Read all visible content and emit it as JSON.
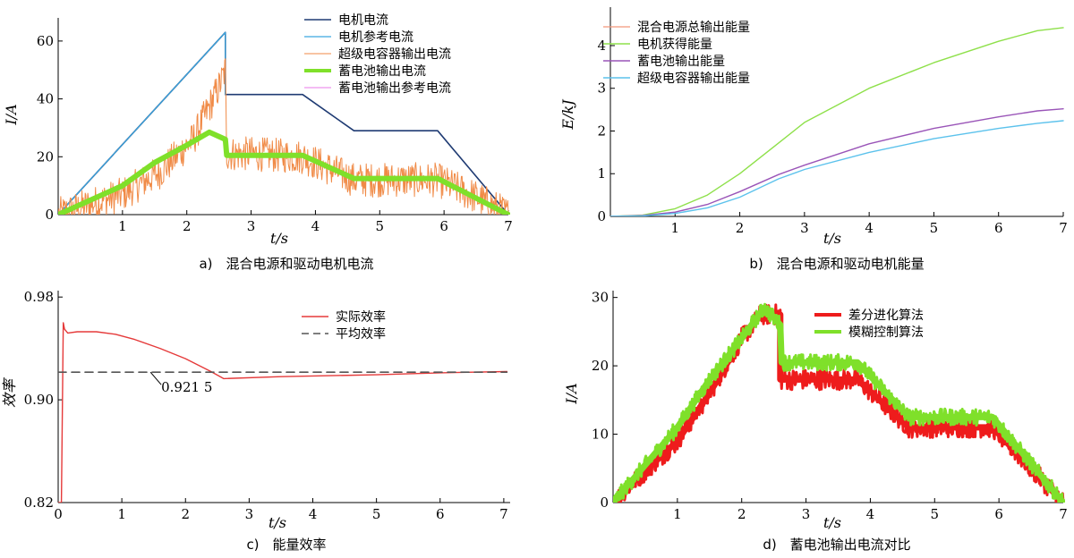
{
  "chart_data": [
    {
      "id": "a",
      "type": "line",
      "caption": "a)　混合电源和驱动电机电流",
      "xlabel": "t/s",
      "ylabel": "I/A",
      "xlim": [
        0,
        7
      ],
      "ylim": [
        0,
        68
      ],
      "xticks": [
        1,
        2,
        3,
        4,
        5,
        6,
        7
      ],
      "yticks": [
        0,
        20,
        40,
        60
      ],
      "legend_position": "top-right",
      "series": [
        {
          "name": "电机电流",
          "color": "#1f3b73",
          "width": 1.6,
          "x": [
            0,
            2.6,
            2.6,
            3.8,
            4.6,
            5.9,
            7
          ],
          "y": [
            0,
            63,
            41.5,
            41.5,
            29,
            29,
            0
          ]
        },
        {
          "name": "电机参考电流",
          "color": "#3aa7e0",
          "width": 1.2,
          "x": [
            0,
            2.6,
            2.6
          ],
          "y": [
            0,
            63,
            41.5
          ]
        },
        {
          "name": "超级电容器输出电流",
          "color": "#f08a46",
          "width": 1,
          "noisy": true,
          "noise_amp": 6,
          "x": [
            0,
            1,
            1.6,
            2.1,
            2.5,
            2.6,
            2.62,
            3,
            3.8,
            4.6,
            5.9,
            6.5,
            7
          ],
          "y": [
            0,
            7,
            15,
            26,
            44,
            50,
            21,
            21,
            20,
            12,
            12,
            6,
            0
          ]
        },
        {
          "name": "蓄电池输出电流",
          "color": "#7fe02a",
          "width": 6,
          "x": [
            0,
            1,
            1.5,
            2.0,
            2.35,
            2.5,
            2.6,
            2.62,
            3.8,
            4.6,
            5.9,
            7
          ],
          "y": [
            0,
            10,
            18,
            24,
            28.5,
            27,
            26,
            20.5,
            20.5,
            12.5,
            12.5,
            0
          ]
        },
        {
          "name": "蓄电池输出参考电流",
          "color": "#e879e8",
          "width": 1,
          "legend_only": true,
          "x": [],
          "y": []
        }
      ]
    },
    {
      "id": "b",
      "type": "line",
      "caption": "b)　混合电源和驱动电机能量",
      "xlabel": "t/s",
      "ylabel": "E/kJ",
      "xlim": [
        0,
        7
      ],
      "ylim": [
        0,
        4.9
      ],
      "xticks": [
        1,
        2,
        3,
        4,
        5,
        6,
        7
      ],
      "yticks": [
        0,
        1,
        2,
        3,
        4
      ],
      "legend_position": "top-left",
      "series": [
        {
          "name": "混合电源总输出能量",
          "color": "#f2967a",
          "width": 1.2,
          "legend_only": true,
          "x": [],
          "y": []
        },
        {
          "name": "电机获得能量",
          "color": "#8ee04a",
          "width": 1.4,
          "x": [
            0,
            0.5,
            1,
            1.5,
            2,
            2.6,
            3,
            4,
            5,
            6,
            6.6,
            7
          ],
          "y": [
            0,
            0.03,
            0.18,
            0.5,
            1.0,
            1.72,
            2.2,
            3.0,
            3.6,
            4.1,
            4.35,
            4.42
          ]
        },
        {
          "name": "蓄电池输出能量",
          "color": "#9a55b8",
          "width": 1.4,
          "x": [
            0,
            0.5,
            1,
            1.5,
            2,
            2.6,
            3,
            4,
            5,
            6,
            6.6,
            7
          ],
          "y": [
            0,
            0.02,
            0.1,
            0.28,
            0.58,
            0.98,
            1.2,
            1.7,
            2.06,
            2.33,
            2.47,
            2.52
          ]
        },
        {
          "name": "超级电容器输出能量",
          "color": "#5cc2ec",
          "width": 1.4,
          "x": [
            0,
            0.5,
            1,
            1.5,
            2,
            2.6,
            3,
            4,
            5,
            6,
            6.6,
            7
          ],
          "y": [
            0,
            0.01,
            0.07,
            0.2,
            0.45,
            0.88,
            1.1,
            1.5,
            1.82,
            2.06,
            2.18,
            2.24
          ]
        }
      ]
    },
    {
      "id": "c",
      "type": "line",
      "caption": "c)　能量效率",
      "xlabel": "t/s",
      "ylabel": "效率",
      "xlim": [
        0,
        7.1
      ],
      "ylim": [
        0.82,
        0.985
      ],
      "xticks": [
        0,
        1,
        2,
        3,
        4,
        5,
        6,
        7
      ],
      "yticks": [
        0.82,
        0.9,
        0.98
      ],
      "ytick_labels": [
        "0.82",
        "0.90",
        "0.98"
      ],
      "legend_position": "top-right",
      "annotation": {
        "text": "0.921 5",
        "x": 1.45,
        "y": 0.9215
      },
      "series": [
        {
          "name": "实际效率",
          "color": "#e53a3a",
          "width": 1.4,
          "x": [
            0,
            0.05,
            0.08,
            0.1,
            0.15,
            0.3,
            0.6,
            0.9,
            1.2,
            1.6,
            2.0,
            2.4,
            2.6,
            3.5,
            5.0,
            6.0,
            7.05
          ],
          "y": [
            0.82,
            0.82,
            0.96,
            0.955,
            0.952,
            0.953,
            0.953,
            0.951,
            0.947,
            0.94,
            0.932,
            0.922,
            0.9165,
            0.918,
            0.9195,
            0.921,
            0.922
          ]
        },
        {
          "name": "平均效率",
          "color": "#555555",
          "width": 1.6,
          "dashed": true,
          "x": [
            0,
            7.05
          ],
          "y": [
            0.9215,
            0.9215
          ]
        }
      ]
    },
    {
      "id": "d",
      "type": "line",
      "caption": "d)　蓄电池输出电流对比",
      "xlabel": "t/s",
      "ylabel": "I/A",
      "xlim": [
        0,
        7
      ],
      "ylim": [
        0,
        31
      ],
      "xticks": [
        1,
        2,
        3,
        4,
        5,
        6,
        7
      ],
      "yticks": [
        0,
        10,
        20,
        30
      ],
      "legend_position": "top-right",
      "series": [
        {
          "name": "差分进化算法",
          "color": "#ee1c1c",
          "width": 7,
          "noisy": true,
          "noise_amp": 1.5,
          "x": [
            0,
            0.2,
            1,
            1.5,
            2.0,
            2.3,
            2.6,
            2.6,
            3.8,
            4.6,
            5.9,
            7
          ],
          "y": [
            0,
            2,
            9,
            16,
            24,
            27.5,
            27.5,
            18,
            18,
            11,
            11,
            0
          ]
        },
        {
          "name": "模糊控制算法",
          "color": "#7fe02a",
          "width": 7,
          "noisy": true,
          "noise_amp": 1.2,
          "x": [
            0,
            1,
            1.5,
            2.0,
            2.35,
            2.5,
            2.6,
            2.62,
            3.8,
            4.6,
            5.9,
            7
          ],
          "y": [
            0,
            11,
            18,
            24,
            28.5,
            27,
            26,
            20.5,
            20.5,
            12.5,
            12.5,
            0
          ]
        }
      ]
    }
  ]
}
